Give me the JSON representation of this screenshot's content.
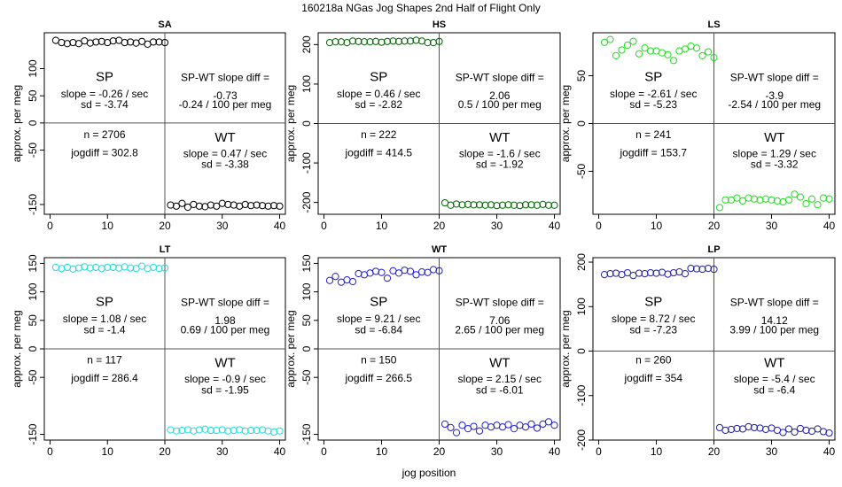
{
  "title": "160218a   NGas Jog Shapes 2nd Half of Flight Only",
  "xlabel": "jog position",
  "ylabel": "approx. per meg",
  "chart_data": [
    {
      "type": "scatter",
      "title": "SA",
      "color": "#000000",
      "xlim": [
        -1,
        41
      ],
      "ylim": [
        -168,
        166
      ],
      "yticks": [
        -150,
        -50,
        0,
        50,
        100
      ],
      "xticks": [
        0,
        10,
        20,
        30,
        40
      ],
      "x": [
        1,
        2,
        3,
        4,
        5,
        6,
        7,
        8,
        9,
        10,
        11,
        12,
        13,
        14,
        15,
        16,
        17,
        18,
        19,
        20,
        21,
        22,
        23,
        24,
        25,
        26,
        27,
        28,
        29,
        30,
        31,
        32,
        33,
        34,
        35,
        36,
        37,
        38,
        39,
        40
      ],
      "y": [
        152,
        148,
        146,
        148,
        146,
        151,
        147,
        149,
        150,
        148,
        151,
        152,
        148,
        149,
        147,
        150,
        145,
        149,
        149,
        148,
        -151,
        -153,
        -148,
        -155,
        -150,
        -153,
        -154,
        -151,
        -153,
        -148,
        -150,
        -151,
        -153,
        -150,
        -152,
        -151,
        -152,
        -153,
        -152,
        -153
      ],
      "labels": {
        "sp": "SP",
        "sp_slope": "slope = -0.26 / sec",
        "sp_sd": "sd = -3.74",
        "diff_title": "SP-WT slope diff =",
        "diff_value": "-0.73",
        "diff_per_meg": "-0.24 / 100 per meg",
        "n": "n = 2706",
        "jogdiff": "jogdiff = 302.8",
        "wt": "WT",
        "wt_slope": "slope = 0.47 / sec",
        "wt_sd": "sd = -3.38"
      }
    },
    {
      "type": "scatter",
      "title": "HS",
      "color": "#006400",
      "xlim": [
        -1,
        41
      ],
      "ylim": [
        -230,
        230
      ],
      "yticks": [
        -200,
        -100,
        0,
        100,
        200
      ],
      "xticks": [
        0,
        10,
        20,
        30,
        40
      ],
      "x": [
        1,
        2,
        3,
        4,
        5,
        6,
        7,
        8,
        9,
        10,
        11,
        12,
        13,
        14,
        15,
        16,
        17,
        18,
        19,
        20,
        21,
        22,
        23,
        24,
        25,
        26,
        27,
        28,
        29,
        30,
        31,
        32,
        33,
        34,
        35,
        36,
        37,
        38,
        39,
        40
      ],
      "y": [
        205,
        207,
        207,
        205,
        209,
        208,
        207,
        207,
        208,
        206,
        208,
        209,
        208,
        209,
        209,
        211,
        209,
        205,
        205,
        208,
        -201,
        -207,
        -204,
        -206,
        -205,
        -206,
        -206,
        -207,
        -206,
        -208,
        -207,
        -206,
        -207,
        -208,
        -206,
        -206,
        -207,
        -205,
        -207,
        -207
      ],
      "labels": {
        "sp": "SP",
        "sp_slope": "slope = 0.46 / sec",
        "sp_sd": "sd = -2.82",
        "diff_title": "SP-WT slope diff =",
        "diff_value": "2.06",
        "diff_per_meg": "0.5 / 100 per meg",
        "n": "n = 222",
        "jogdiff": "jogdiff = 414.5",
        "wt": "WT",
        "wt_slope": "slope = -1.6 / sec",
        "wt_sd": "sd = -1.92"
      }
    },
    {
      "type": "scatter",
      "title": "LS",
      "color": "#22dd22",
      "xlim": [
        -1,
        41
      ],
      "ylim": [
        -95,
        95
      ],
      "yticks": [
        -50,
        0,
        50
      ],
      "xticks": [
        0,
        10,
        20,
        30,
        40
      ],
      "x": [
        1,
        2,
        3,
        4,
        5,
        6,
        7,
        8,
        9,
        10,
        11,
        12,
        13,
        14,
        15,
        16,
        17,
        18,
        19,
        20,
        21,
        22,
        23,
        24,
        25,
        26,
        27,
        28,
        29,
        30,
        31,
        32,
        33,
        34,
        35,
        36,
        37,
        38,
        39,
        40
      ],
      "y": [
        85,
        88,
        71,
        77,
        82,
        86,
        73,
        79,
        76,
        76,
        74,
        72,
        66,
        76,
        78,
        81,
        79,
        71,
        75,
        69,
        -88,
        -80,
        -80,
        -78,
        -81,
        -78,
        -79,
        -80,
        -79,
        -80,
        -81,
        -82,
        -80,
        -74,
        -77,
        -84,
        -79,
        -85,
        -78,
        -79
      ],
      "labels": {
        "sp": "SP",
        "sp_slope": "slope = -2.61 / sec",
        "sp_sd": "sd = -5.23",
        "diff_title": "SP-WT slope diff =",
        "diff_value": "-3.9",
        "diff_per_meg": "-2.54 / 100 per meg",
        "n": "n = 241",
        "jogdiff": "jogdiff = 153.7",
        "wt": "WT",
        "wt_slope": "slope = 1.29 / sec",
        "wt_sd": "sd = -3.32"
      }
    },
    {
      "type": "scatter",
      "title": "LT",
      "color": "#22dddd",
      "xlim": [
        -1,
        41
      ],
      "ylim": [
        -160,
        160
      ],
      "yticks": [
        -150,
        -50,
        0,
        50,
        100,
        150
      ],
      "xticks": [
        0,
        10,
        20,
        30,
        40
      ],
      "x": [
        1,
        2,
        3,
        4,
        5,
        6,
        7,
        8,
        9,
        10,
        11,
        12,
        13,
        14,
        15,
        16,
        17,
        18,
        19,
        20,
        21,
        22,
        23,
        24,
        25,
        26,
        27,
        28,
        29,
        30,
        31,
        32,
        33,
        34,
        35,
        36,
        37,
        38,
        39,
        40
      ],
      "y": [
        143,
        141,
        143,
        140,
        142,
        144,
        142,
        143,
        141,
        143,
        143,
        142,
        144,
        142,
        141,
        145,
        141,
        143,
        141,
        142,
        -142,
        -144,
        -143,
        -142,
        -144,
        -142,
        -141,
        -143,
        -143,
        -142,
        -144,
        -143,
        -142,
        -144,
        -143,
        -143,
        -142,
        -144,
        -146,
        -144
      ],
      "labels": {
        "sp": "SP",
        "sp_slope": "slope = 1.08 / sec",
        "sp_sd": "sd = -1.4",
        "diff_title": "SP-WT slope diff =",
        "diff_value": "1.98",
        "diff_per_meg": "0.69 / 100 per meg",
        "n": "n = 117",
        "jogdiff": "jogdiff = 286.4",
        "wt": "WT",
        "wt_slope": "slope = -0.9 / sec",
        "wt_sd": "sd = -1.95"
      }
    },
    {
      "type": "scatter",
      "title": "WT",
      "color": "#2222cc",
      "xlim": [
        -1,
        41
      ],
      "ylim": [
        -160,
        160
      ],
      "yticks": [
        -150,
        -50,
        0,
        50,
        100,
        150
      ],
      "xticks": [
        0,
        10,
        20,
        30,
        40
      ],
      "x": [
        1,
        2,
        3,
        4,
        5,
        6,
        7,
        8,
        9,
        10,
        11,
        12,
        13,
        14,
        15,
        16,
        17,
        18,
        19,
        20,
        21,
        22,
        23,
        24,
        25,
        26,
        27,
        28,
        29,
        30,
        31,
        32,
        33,
        34,
        35,
        36,
        37,
        38,
        39,
        40
      ],
      "y": [
        120,
        127,
        117,
        121,
        118,
        132,
        130,
        133,
        136,
        134,
        124,
        137,
        133,
        138,
        136,
        130,
        135,
        134,
        139,
        137,
        -132,
        -138,
        -147,
        -134,
        -140,
        -136,
        -144,
        -134,
        -137,
        -134,
        -137,
        -133,
        -140,
        -134,
        -137,
        -132,
        -139,
        -132,
        -128,
        -134
      ],
      "labels": {
        "sp": "SP",
        "sp_slope": "slope = 9.21 / sec",
        "sp_sd": "sd = -6.84",
        "diff_title": "SP-WT slope diff =",
        "diff_value": "7.06",
        "diff_per_meg": "2.65 / 100 per meg",
        "n": "n = 150",
        "jogdiff": "jogdiff = 266.5",
        "wt": "WT",
        "wt_slope": "slope = 2.15 / sec",
        "wt_sd": "sd = -6.01"
      }
    },
    {
      "type": "scatter",
      "title": "LP",
      "color": "#2222aa",
      "xlim": [
        -1,
        41
      ],
      "ylim": [
        -200,
        210
      ],
      "yticks": [
        -200,
        -100,
        0,
        100,
        200
      ],
      "xticks": [
        0,
        10,
        20,
        30,
        40
      ],
      "x": [
        1,
        2,
        3,
        4,
        5,
        6,
        7,
        8,
        9,
        10,
        11,
        12,
        13,
        14,
        15,
        16,
        17,
        18,
        19,
        20,
        21,
        22,
        23,
        24,
        25,
        26,
        27,
        28,
        29,
        30,
        31,
        32,
        33,
        34,
        35,
        36,
        37,
        38,
        39,
        40
      ],
      "y": [
        172,
        174,
        175,
        172,
        176,
        170,
        175,
        174,
        176,
        175,
        177,
        173,
        176,
        178,
        174,
        186,
        185,
        184,
        186,
        184,
        -172,
        -178,
        -176,
        -174,
        -175,
        -170,
        -172,
        -173,
        -176,
        -173,
        -178,
        -183,
        -175,
        -182,
        -174,
        -178,
        -180,
        -175,
        -181,
        -184
      ],
      "labels": {
        "sp": "SP",
        "sp_slope": "slope = 8.72 / sec",
        "sp_sd": "sd = -7.23",
        "diff_title": "SP-WT slope diff =",
        "diff_value": "14.12",
        "diff_per_meg": "3.99 / 100 per meg",
        "n": "n = 260",
        "jogdiff": "jogdiff = 354",
        "wt": "WT",
        "wt_slope": "slope = -5.4 / sec",
        "wt_sd": "sd = -6.4"
      }
    }
  ]
}
